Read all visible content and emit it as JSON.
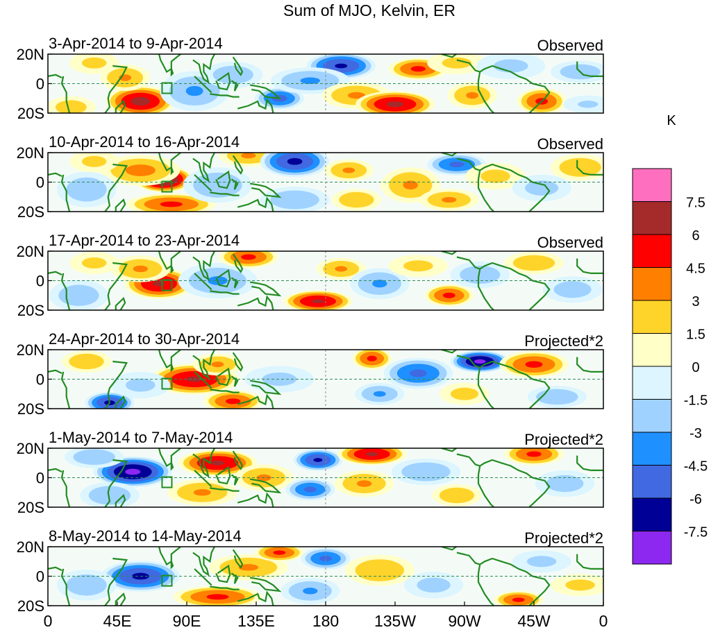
{
  "chart_data": {
    "type": "heatmap",
    "title": "Sum of MJO, Kelvin, ER",
    "units": "K",
    "x_ticks": [
      "0",
      "45E",
      "90E",
      "135E",
      "180",
      "135W",
      "90W",
      "45W",
      "0"
    ],
    "y_ticks": [
      "20N",
      "0",
      "20S"
    ],
    "x_range_deg": [
      0,
      360
    ],
    "y_range_deg": [
      -20,
      20
    ],
    "colorbar": {
      "labels": [
        "7.5",
        "6",
        "4.5",
        "3",
        "1.5",
        "0",
        "-1.5",
        "-3",
        "-4.5",
        "-6",
        "-7.5"
      ],
      "levels": [
        7.5,
        6,
        4.5,
        3,
        1.5,
        0,
        -1.5,
        -3,
        -4.5,
        -6,
        -7.5
      ],
      "colors": [
        "#ff6fbf",
        "#a52a2a",
        "#ff0000",
        "#ff7f00",
        "#ffd42a",
        "#ffffc8",
        "#dcf5ff",
        "#a0d2ff",
        "#1e90ff",
        "#4169e1",
        "#000096",
        "#8c28f0"
      ]
    },
    "panels": [
      {
        "date_range": "3-Apr-2014 to 9-Apr-2014",
        "kind": "Observed",
        "blobs": [
          {
            "lon": 60,
            "lat": -12,
            "v": 6.5,
            "wl": 14,
            "wt": 7
          },
          {
            "lon": 50,
            "lat": 4,
            "v": 3.2,
            "wl": 10,
            "wt": 6
          },
          {
            "lon": 15,
            "lat": -16,
            "v": 2.5,
            "wl": 10,
            "wt": 5
          },
          {
            "lon": 30,
            "lat": 14,
            "v": 2.0,
            "wl": 10,
            "wt": 5
          },
          {
            "lon": 95,
            "lat": -5,
            "v": -3.2,
            "wl": 14,
            "wt": 9
          },
          {
            "lon": 120,
            "lat": 6,
            "v": -2.8,
            "wl": 12,
            "wt": 6
          },
          {
            "lon": 150,
            "lat": -10,
            "v": -5.0,
            "wl": 10,
            "wt": 5
          },
          {
            "lon": 190,
            "lat": 12,
            "v": -6.2,
            "wl": 14,
            "wt": 6
          },
          {
            "lon": 170,
            "lat": 2,
            "v": -3.2,
            "wl": 16,
            "wt": 6
          },
          {
            "lon": 200,
            "lat": -8,
            "v": 3.2,
            "wl": 14,
            "wt": 6
          },
          {
            "lon": 225,
            "lat": -14,
            "v": 6.3,
            "wl": 16,
            "wt": 6
          },
          {
            "lon": 240,
            "lat": 10,
            "v": 4.8,
            "wl": 12,
            "wt": 5
          },
          {
            "lon": 265,
            "lat": 14,
            "v": 2.0,
            "wl": 12,
            "wt": 5
          },
          {
            "lon": 275,
            "lat": -8,
            "v": 3.2,
            "wl": 10,
            "wt": 6
          },
          {
            "lon": 300,
            "lat": 12,
            "v": -2.0,
            "wl": 14,
            "wt": 6
          },
          {
            "lon": 320,
            "lat": -12,
            "v": 4.8,
            "wl": 10,
            "wt": 6
          },
          {
            "lon": 345,
            "lat": 8,
            "v": -2.8,
            "wl": 12,
            "wt": 5
          },
          {
            "lon": 350,
            "lat": -14,
            "v": -1.8,
            "wl": 10,
            "wt": 4
          }
        ]
      },
      {
        "date_range": "10-Apr-2014 to 16-Apr-2014",
        "kind": "Observed",
        "blobs": [
          {
            "lon": 75,
            "lat": 2,
            "v": 8.0,
            "wl": 12,
            "wt": 6
          },
          {
            "lon": 60,
            "lat": 8,
            "v": 3.5,
            "wl": 16,
            "wt": 7
          },
          {
            "lon": 80,
            "lat": -15,
            "v": 4.8,
            "wl": 18,
            "wt": 5
          },
          {
            "lon": 30,
            "lat": 14,
            "v": 2.0,
            "wl": 10,
            "wt": 5
          },
          {
            "lon": 25,
            "lat": -5,
            "v": -2.8,
            "wl": 12,
            "wt": 8
          },
          {
            "lon": 110,
            "lat": -2,
            "v": -3.0,
            "wl": 14,
            "wt": 8
          },
          {
            "lon": 130,
            "lat": 18,
            "v": 3.2,
            "wl": 12,
            "wt": 5
          },
          {
            "lon": 160,
            "lat": 14,
            "v": -6.3,
            "wl": 14,
            "wt": 7
          },
          {
            "lon": 160,
            "lat": -12,
            "v": -3.0,
            "wl": 14,
            "wt": 6
          },
          {
            "lon": 195,
            "lat": 8,
            "v": 3.2,
            "wl": 10,
            "wt": 5
          },
          {
            "lon": 200,
            "lat": -12,
            "v": 3.0,
            "wl": 10,
            "wt": 5
          },
          {
            "lon": 235,
            "lat": -2,
            "v": 3.2,
            "wl": 12,
            "wt": 8
          },
          {
            "lon": 265,
            "lat": 12,
            "v": -4.8,
            "wl": 12,
            "wt": 5
          },
          {
            "lon": 260,
            "lat": -12,
            "v": 3.2,
            "wl": 12,
            "wt": 5
          },
          {
            "lon": 290,
            "lat": 4,
            "v": 2.0,
            "wl": 12,
            "wt": 6
          },
          {
            "lon": 320,
            "lat": -4,
            "v": -2.2,
            "wl": 12,
            "wt": 6
          },
          {
            "lon": 345,
            "lat": 10,
            "v": 3.0,
            "wl": 12,
            "wt": 6
          }
        ]
      },
      {
        "date_range": "17-Apr-2014 to 23-Apr-2014",
        "kind": "Observed",
        "blobs": [
          {
            "lon": 72,
            "lat": -2,
            "v": 6.2,
            "wl": 14,
            "wt": 7
          },
          {
            "lon": 60,
            "lat": 8,
            "v": 3.2,
            "wl": 12,
            "wt": 6
          },
          {
            "lon": 20,
            "lat": -10,
            "v": -2.8,
            "wl": 12,
            "wt": 7
          },
          {
            "lon": 30,
            "lat": 12,
            "v": 2.0,
            "wl": 10,
            "wt": 5
          },
          {
            "lon": 110,
            "lat": 0,
            "v": -3.2,
            "wl": 16,
            "wt": 8
          },
          {
            "lon": 130,
            "lat": 16,
            "v": 4.8,
            "wl": 12,
            "wt": 5
          },
          {
            "lon": 175,
            "lat": -14,
            "v": 6.2,
            "wl": 14,
            "wt": 5
          },
          {
            "lon": 190,
            "lat": 8,
            "v": 3.2,
            "wl": 10,
            "wt": 5
          },
          {
            "lon": 215,
            "lat": -2,
            "v": -3.2,
            "wl": 12,
            "wt": 7
          },
          {
            "lon": 240,
            "lat": 10,
            "v": 2.0,
            "wl": 12,
            "wt": 5
          },
          {
            "lon": 260,
            "lat": -10,
            "v": 4.8,
            "wl": 10,
            "wt": 5
          },
          {
            "lon": 280,
            "lat": 4,
            "v": -2.8,
            "wl": 12,
            "wt": 6
          },
          {
            "lon": 315,
            "lat": 12,
            "v": 3.0,
            "wl": 12,
            "wt": 5
          },
          {
            "lon": 340,
            "lat": -6,
            "v": -2.5,
            "wl": 12,
            "wt": 6
          }
        ]
      },
      {
        "date_range": "24-Apr-2014 to 30-Apr-2014",
        "kind": "Projected*2",
        "blobs": [
          {
            "lon": 95,
            "lat": 0,
            "v": 6.2,
            "wl": 18,
            "wt": 7
          },
          {
            "lon": 110,
            "lat": 10,
            "v": 3.2,
            "wl": 10,
            "wt": 5
          },
          {
            "lon": 120,
            "lat": -15,
            "v": 4.8,
            "wl": 12,
            "wt": 5
          },
          {
            "lon": 40,
            "lat": -16,
            "v": -6.3,
            "wl": 10,
            "wt": 5
          },
          {
            "lon": 25,
            "lat": 12,
            "v": 3.0,
            "wl": 10,
            "wt": 5
          },
          {
            "lon": 60,
            "lat": -4,
            "v": -2.0,
            "wl": 12,
            "wt": 6
          },
          {
            "lon": 150,
            "lat": 0,
            "v": -2.0,
            "wl": 14,
            "wt": 6
          },
          {
            "lon": 210,
            "lat": 14,
            "v": 4.8,
            "wl": 8,
            "wt": 5
          },
          {
            "lon": 215,
            "lat": -10,
            "v": -3.2,
            "wl": 10,
            "wt": 5
          },
          {
            "lon": 240,
            "lat": 4,
            "v": -4.8,
            "wl": 14,
            "wt": 7
          },
          {
            "lon": 280,
            "lat": 12,
            "v": -7.8,
            "wl": 12,
            "wt": 5
          },
          {
            "lon": 270,
            "lat": -10,
            "v": 2.2,
            "wl": 10,
            "wt": 5
          },
          {
            "lon": 315,
            "lat": 10,
            "v": 4.8,
            "wl": 14,
            "wt": 6
          },
          {
            "lon": 330,
            "lat": -12,
            "v": -3.0,
            "wl": 12,
            "wt": 5
          }
        ]
      },
      {
        "date_range": "1-May-2014 to 7-May-2014",
        "kind": "Projected*2",
        "blobs": [
          {
            "lon": 55,
            "lat": 4,
            "v": -7.8,
            "wl": 16,
            "wt": 7
          },
          {
            "lon": 30,
            "lat": 14,
            "v": -3.0,
            "wl": 12,
            "wt": 5
          },
          {
            "lon": 40,
            "lat": -12,
            "v": -3.0,
            "wl": 12,
            "wt": 6
          },
          {
            "lon": 110,
            "lat": 10,
            "v": 6.2,
            "wl": 16,
            "wt": 6
          },
          {
            "lon": 100,
            "lat": -10,
            "v": 3.2,
            "wl": 14,
            "wt": 6
          },
          {
            "lon": 140,
            "lat": 0,
            "v": 3.2,
            "wl": 12,
            "wt": 6
          },
          {
            "lon": 175,
            "lat": 12,
            "v": -6.2,
            "wl": 10,
            "wt": 5
          },
          {
            "lon": 170,
            "lat": -8,
            "v": -4.8,
            "wl": 10,
            "wt": 5
          },
          {
            "lon": 210,
            "lat": 16,
            "v": 6.2,
            "wl": 14,
            "wt": 5
          },
          {
            "lon": 205,
            "lat": -4,
            "v": 3.2,
            "wl": 12,
            "wt": 6
          },
          {
            "lon": 245,
            "lat": 4,
            "v": -3.0,
            "wl": 14,
            "wt": 6
          },
          {
            "lon": 265,
            "lat": -12,
            "v": 3.0,
            "wl": 10,
            "wt": 5
          },
          {
            "lon": 315,
            "lat": 16,
            "v": 4.8,
            "wl": 12,
            "wt": 5
          },
          {
            "lon": 335,
            "lat": -4,
            "v": -2.5,
            "wl": 12,
            "wt": 6
          }
        ]
      },
      {
        "date_range": "8-May-2014 to 14-May-2014",
        "kind": "Projected*2",
        "blobs": [
          {
            "lon": 60,
            "lat": 0,
            "v": -6.3,
            "wl": 16,
            "wt": 7
          },
          {
            "lon": 25,
            "lat": -6,
            "v": -2.8,
            "wl": 12,
            "wt": 7
          },
          {
            "lon": 110,
            "lat": -14,
            "v": 4.8,
            "wl": 18,
            "wt": 5
          },
          {
            "lon": 130,
            "lat": 6,
            "v": 3.2,
            "wl": 16,
            "wt": 6
          },
          {
            "lon": 150,
            "lat": 16,
            "v": 4.8,
            "wl": 10,
            "wt": 4
          },
          {
            "lon": 170,
            "lat": -10,
            "v": -3.2,
            "wl": 12,
            "wt": 6
          },
          {
            "lon": 180,
            "lat": 12,
            "v": -4.8,
            "wl": 10,
            "wt": 5
          },
          {
            "lon": 215,
            "lat": 4,
            "v": 3.0,
            "wl": 14,
            "wt": 7
          },
          {
            "lon": 250,
            "lat": -6,
            "v": -2.2,
            "wl": 12,
            "wt": 6
          },
          {
            "lon": 305,
            "lat": -16,
            "v": 4.8,
            "wl": 10,
            "wt": 4
          },
          {
            "lon": 320,
            "lat": 10,
            "v": -2.0,
            "wl": 12,
            "wt": 5
          },
          {
            "lon": 345,
            "lat": -6,
            "v": 2.0,
            "wl": 12,
            "wt": 5
          }
        ]
      }
    ]
  }
}
